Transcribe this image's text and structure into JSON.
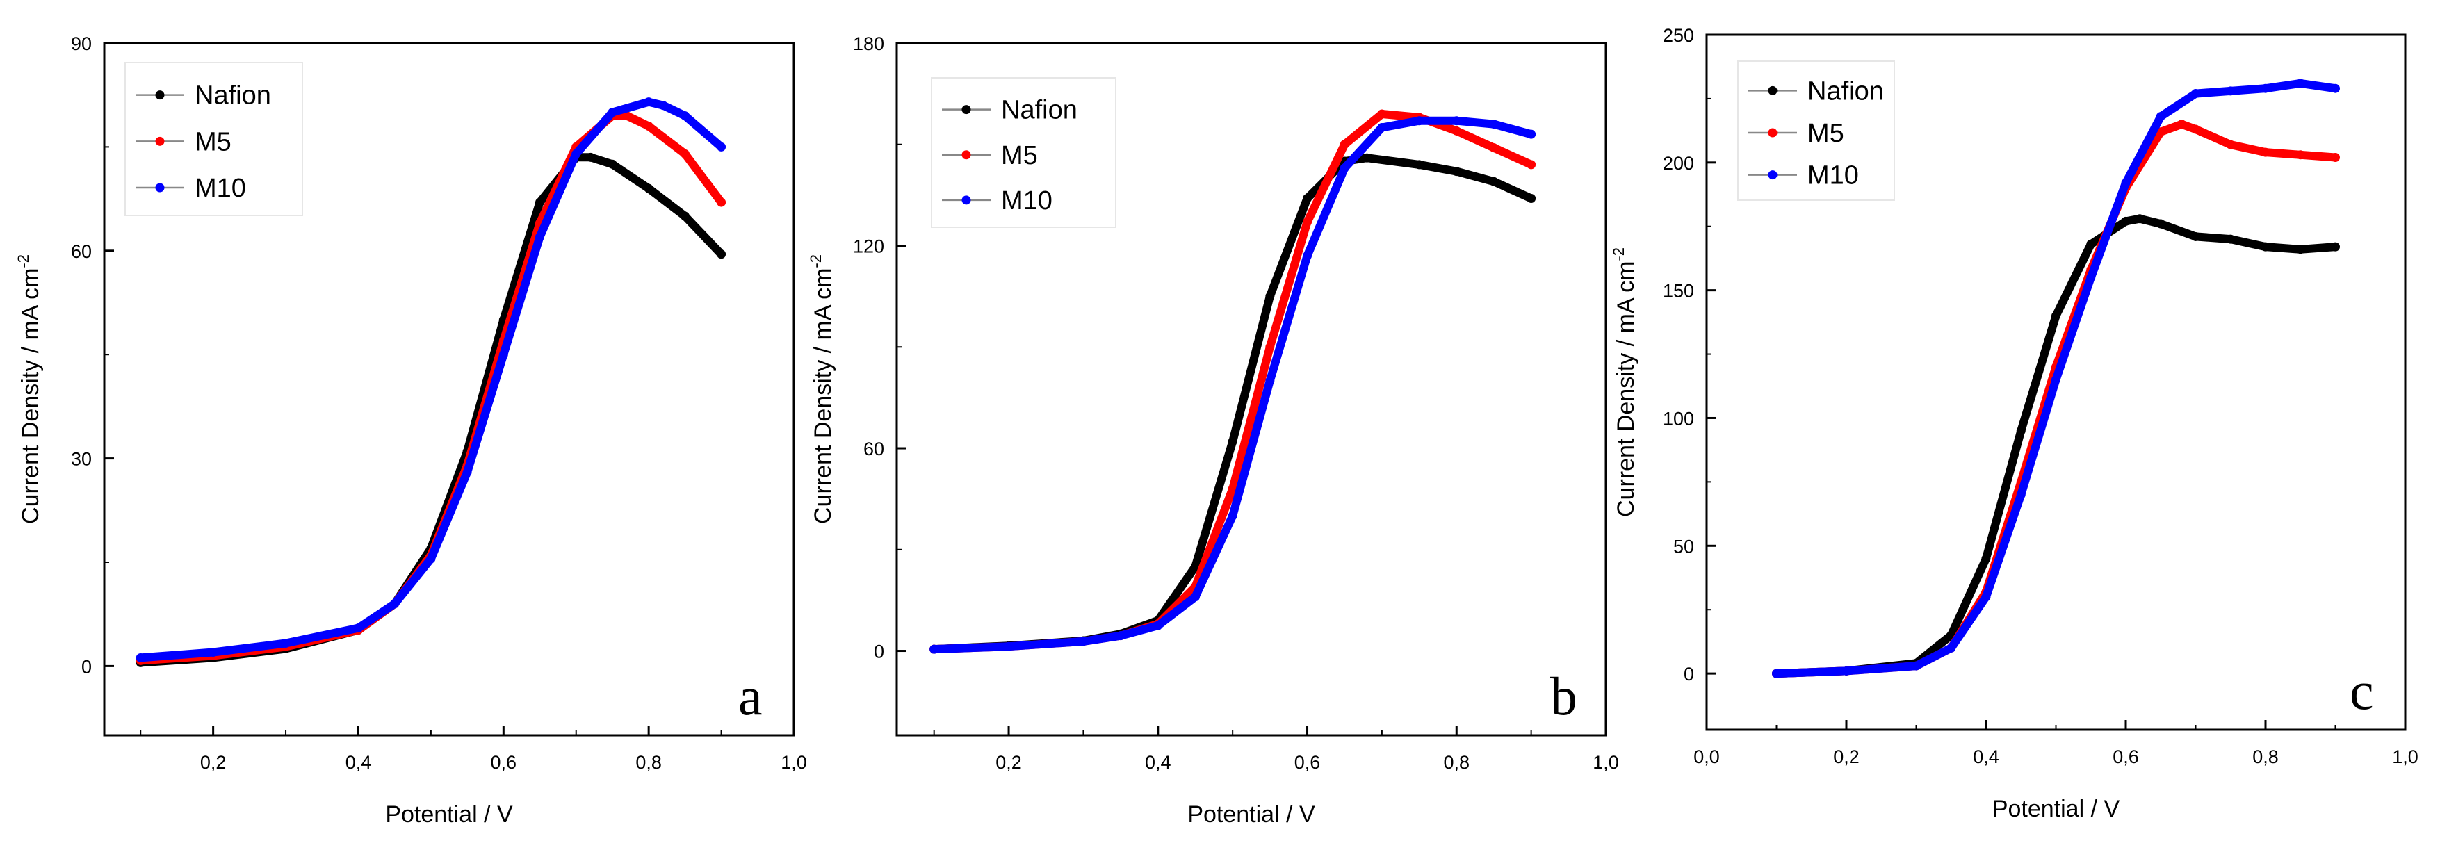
{
  "chart_data": [
    {
      "type": "line",
      "panel_label": "a",
      "xlabel": "Potential / V",
      "ylabel": "Current Density / mA cm",
      "ylabel_sup": "-2",
      "xlim": [
        0.05,
        1.0
      ],
      "ylim": [
        -10,
        90
      ],
      "xticks": [
        0.2,
        0.4,
        0.6,
        0.8,
        1.0
      ],
      "xtick_labels": [
        "0,2",
        "0,4",
        "0,6",
        "0,8",
        "1,0"
      ],
      "yticks": [
        0,
        30,
        60,
        90
      ],
      "ytick_labels": [
        "0",
        "30",
        "60",
        "90"
      ],
      "legend": [
        "Nafion",
        "M5",
        "M10"
      ],
      "series": [
        {
          "name": "Nafion",
          "color": "#000000",
          "x": [
            0.1,
            0.2,
            0.3,
            0.4,
            0.45,
            0.5,
            0.55,
            0.6,
            0.65,
            0.7,
            0.72,
            0.75,
            0.8,
            0.85,
            0.9
          ],
          "y": [
            0.5,
            1.2,
            2.5,
            5.2,
            9,
            17,
            31,
            50,
            67,
            73.5,
            73.5,
            72.5,
            69,
            65,
            59.5
          ]
        },
        {
          "name": "M5",
          "color": "#ff0000",
          "x": [
            0.1,
            0.2,
            0.3,
            0.4,
            0.45,
            0.5,
            0.55,
            0.6,
            0.65,
            0.7,
            0.75,
            0.77,
            0.8,
            0.85,
            0.9
          ],
          "y": [
            0.8,
            1.5,
            2.8,
            5.2,
            9,
            16,
            29,
            47,
            64,
            75,
            79.5,
            79.5,
            78,
            74,
            67
          ]
        },
        {
          "name": "M10",
          "color": "#0000ff",
          "x": [
            0.1,
            0.2,
            0.3,
            0.4,
            0.45,
            0.5,
            0.55,
            0.6,
            0.65,
            0.7,
            0.75,
            0.8,
            0.82,
            0.85,
            0.9
          ],
          "y": [
            1.2,
            2,
            3.3,
            5.5,
            9,
            15.5,
            28,
            45,
            62,
            74,
            80,
            81.5,
            81,
            79.5,
            75
          ]
        }
      ]
    },
    {
      "type": "line",
      "panel_label": "b",
      "xlabel": "Potential / V",
      "ylabel": "Current Density / mA cm",
      "ylabel_sup": "-2",
      "xlim": [
        0.05,
        1.0
      ],
      "ylim": [
        -25,
        180
      ],
      "xticks": [
        0.2,
        0.4,
        0.6,
        0.8,
        1.0
      ],
      "xtick_labels": [
        "0,2",
        "0,4",
        "0,6",
        "0,8",
        "1,0"
      ],
      "yticks": [
        0,
        60,
        120,
        180
      ],
      "ytick_labels": [
        "0",
        "60",
        "120",
        "180"
      ],
      "legend": [
        "Nafion",
        "M5",
        "M10"
      ],
      "series": [
        {
          "name": "Nafion",
          "color": "#000000",
          "x": [
            0.1,
            0.2,
            0.3,
            0.35,
            0.4,
            0.45,
            0.5,
            0.55,
            0.6,
            0.65,
            0.68,
            0.75,
            0.8,
            0.85,
            0.9
          ],
          "y": [
            0.5,
            1.5,
            3,
            5,
            9,
            25,
            62,
            105,
            134,
            145,
            146,
            144,
            142,
            139,
            134
          ]
        },
        {
          "name": "M5",
          "color": "#ff0000",
          "x": [
            0.1,
            0.2,
            0.3,
            0.35,
            0.4,
            0.45,
            0.5,
            0.55,
            0.6,
            0.65,
            0.7,
            0.75,
            0.8,
            0.85,
            0.9
          ],
          "y": [
            0.5,
            1.3,
            2.8,
            4.5,
            8,
            19,
            48,
            90,
            127,
            150,
            159,
            158,
            154,
            149,
            144
          ]
        },
        {
          "name": "M10",
          "color": "#0000ff",
          "x": [
            0.1,
            0.2,
            0.3,
            0.35,
            0.4,
            0.45,
            0.5,
            0.55,
            0.6,
            0.65,
            0.7,
            0.75,
            0.8,
            0.85,
            0.9
          ],
          "y": [
            0.5,
            1.3,
            2.8,
            4.5,
            7.5,
            16,
            40,
            80,
            117,
            143,
            155,
            157,
            157,
            156,
            153
          ]
        }
      ]
    },
    {
      "type": "line",
      "panel_label": "c",
      "xlabel": "Potential / V",
      "ylabel": "Current Density / mA cm",
      "ylabel_sup": "-2",
      "xlim": [
        0.0,
        1.0
      ],
      "ylim": [
        -22,
        250
      ],
      "xticks": [
        0.0,
        0.2,
        0.4,
        0.6,
        0.8,
        1.0
      ],
      "xtick_labels": [
        "0,0",
        "0,2",
        "0,4",
        "0,6",
        "0,8",
        "1,0"
      ],
      "yticks": [
        0,
        50,
        100,
        150,
        200,
        250
      ],
      "ytick_labels": [
        "0",
        "50",
        "100",
        "150",
        "200",
        "250"
      ],
      "legend": [
        "Nafion",
        "M5",
        "M10"
      ],
      "series": [
        {
          "name": "Nafion",
          "color": "#000000",
          "x": [
            0.1,
            0.2,
            0.3,
            0.35,
            0.4,
            0.45,
            0.5,
            0.55,
            0.6,
            0.62,
            0.65,
            0.7,
            0.75,
            0.8,
            0.85,
            0.9
          ],
          "y": [
            0,
            1,
            4,
            15,
            45,
            95,
            140,
            168,
            177,
            178,
            176,
            171,
            170,
            167,
            166,
            167
          ]
        },
        {
          "name": "M5",
          "color": "#ff0000",
          "x": [
            0.1,
            0.2,
            0.3,
            0.35,
            0.4,
            0.45,
            0.5,
            0.55,
            0.6,
            0.65,
            0.68,
            0.7,
            0.75,
            0.8,
            0.85,
            0.9
          ],
          "y": [
            0,
            1,
            3,
            10,
            32,
            75,
            120,
            158,
            190,
            212,
            215,
            213,
            207,
            204,
            203,
            202
          ]
        },
        {
          "name": "M10",
          "color": "#0000ff",
          "x": [
            0.1,
            0.2,
            0.3,
            0.35,
            0.4,
            0.45,
            0.5,
            0.55,
            0.6,
            0.65,
            0.7,
            0.75,
            0.8,
            0.85,
            0.9
          ],
          "y": [
            0,
            1,
            3,
            10,
            30,
            70,
            115,
            155,
            192,
            218,
            227,
            228,
            229,
            231,
            229
          ]
        }
      ]
    }
  ]
}
